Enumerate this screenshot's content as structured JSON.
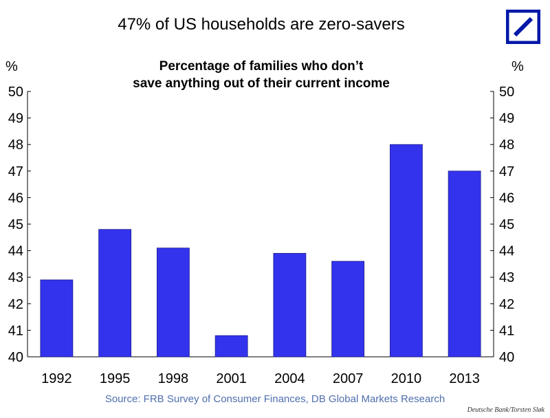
{
  "header": {
    "headline": "47% of US households are zero-savers",
    "logo_icon": "deutsche-bank-logo-icon",
    "logo_color": "#0018a8"
  },
  "footer": {
    "source": "Source: FRB Survey of Consumer Finances, DB Global Markets Research",
    "credit": "Deutsche Bank/Torsten Sløk"
  },
  "chart_data": {
    "type": "bar",
    "title": "Percentage of families who don’t save anything out of their current income",
    "title_lines": [
      "Percentage of families who don’t",
      "save anything out of their current income"
    ],
    "ylabel_left": "%",
    "ylabel_right": "%",
    "categories": [
      "1992",
      "1995",
      "1998",
      "2001",
      "2004",
      "2007",
      "2010",
      "2013"
    ],
    "values": [
      42.9,
      44.8,
      44.1,
      40.8,
      43.9,
      43.6,
      48.0,
      47.0
    ],
    "ylim": [
      40,
      50
    ],
    "yticks": [
      40,
      41,
      42,
      43,
      44,
      45,
      46,
      47,
      48,
      49,
      50
    ],
    "dual_axis": true,
    "grid": false,
    "bar_color": "#3333ee"
  }
}
